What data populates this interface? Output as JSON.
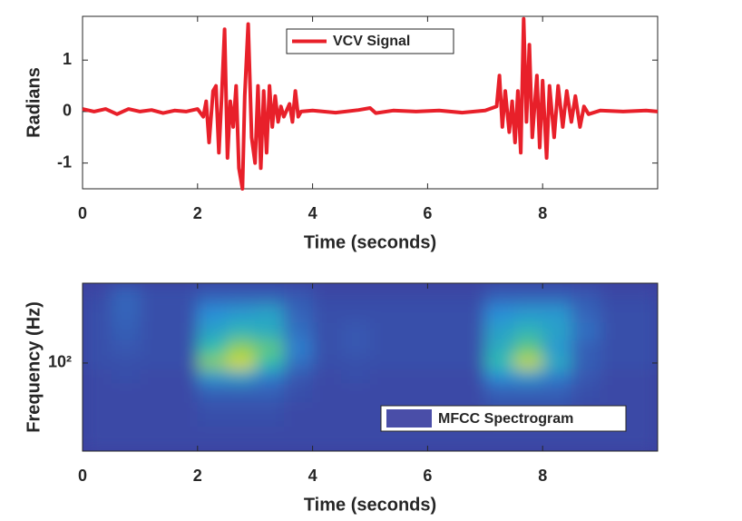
{
  "chart_data": [
    {
      "type": "line",
      "xlabel": "Time (seconds)",
      "ylabel": "Radians",
      "xlim": [
        0,
        10
      ],
      "ylim": [
        -1.5,
        1.85
      ],
      "xticks": [
        0,
        2,
        4,
        6,
        8
      ],
      "yticks": [
        -1,
        0,
        1
      ],
      "legend": "top-center",
      "series": [
        {
          "name": "VCV Signal",
          "color": "#e8202a",
          "x": [
            0,
            0.2,
            0.4,
            0.6,
            0.8,
            1.0,
            1.2,
            1.4,
            1.6,
            1.8,
            2.0,
            2.1,
            2.15,
            2.2,
            2.27,
            2.32,
            2.37,
            2.42,
            2.47,
            2.52,
            2.57,
            2.62,
            2.67,
            2.72,
            2.78,
            2.82,
            2.88,
            2.94,
            3.0,
            3.05,
            3.1,
            3.15,
            3.2,
            3.25,
            3.3,
            3.35,
            3.4,
            3.45,
            3.5,
            3.6,
            3.65,
            3.7,
            3.75,
            3.8,
            4.0,
            4.4,
            4.8,
            5.0,
            5.1,
            5.4,
            5.8,
            6.2,
            6.6,
            7.0,
            7.2,
            7.25,
            7.3,
            7.35,
            7.42,
            7.47,
            7.52,
            7.57,
            7.62,
            7.67,
            7.72,
            7.77,
            7.82,
            7.9,
            7.95,
            8.0,
            8.07,
            8.12,
            8.2,
            8.27,
            8.35,
            8.42,
            8.5,
            8.57,
            8.65,
            8.72,
            8.8,
            9.0,
            9.4,
            9.8,
            10
          ],
          "values": [
            0.05,
            0.0,
            0.05,
            -0.05,
            0.05,
            0.0,
            0.03,
            -0.03,
            0.02,
            0.0,
            0.05,
            -0.1,
            0.2,
            -0.6,
            0.4,
            0.5,
            -0.8,
            0.3,
            1.6,
            -0.9,
            0.2,
            -0.3,
            0.5,
            -1.1,
            -1.5,
            0.3,
            1.7,
            -0.5,
            -1.0,
            0.5,
            -1.1,
            0.4,
            -0.8,
            0.5,
            -0.3,
            0.3,
            -0.2,
            0.1,
            -0.1,
            0.15,
            -0.2,
            0.4,
            -0.1,
            0.0,
            0.02,
            -0.02,
            0.03,
            0.07,
            -0.03,
            0.02,
            0.0,
            0.02,
            -0.02,
            0.02,
            0.1,
            0.7,
            -0.3,
            0.4,
            -0.4,
            0.2,
            -0.6,
            0.4,
            -0.8,
            1.8,
            -0.2,
            1.3,
            -0.5,
            0.7,
            -0.7,
            0.6,
            -0.9,
            0.5,
            -0.5,
            0.5,
            -0.3,
            0.4,
            -0.2,
            0.3,
            -0.3,
            0.1,
            -0.05,
            0.02,
            0.0,
            0.02,
            0.0
          ]
        }
      ]
    },
    {
      "type": "heatmap",
      "xlabel": "Time (seconds)",
      "ylabel": "Frequency (Hz)",
      "xlim": [
        0,
        10
      ],
      "ylim": [
        20,
        430
      ],
      "log_y": true,
      "xticks": [
        0,
        2,
        4,
        6,
        8
      ],
      "yticks": [
        {
          "value": 100,
          "label": "10²"
        }
      ],
      "legend": "bottom-right",
      "legend_name": "MFCC Spectrogram",
      "legend_color": "#4a4ea8",
      "colormap": [
        "#3d3f9f",
        "#2a8fd8",
        "#2ebfae",
        "#a6d33c",
        "#f9e21e"
      ],
      "x": [
        0.25,
        0.75,
        1.25,
        1.75,
        2.25,
        2.75,
        3.25,
        3.75,
        4.25,
        4.75,
        5.25,
        5.75,
        6.25,
        6.75,
        7.25,
        7.75,
        8.25,
        8.75,
        9.25,
        9.75
      ],
      "y": [
        25,
        40,
        60,
        80,
        100,
        130,
        180,
        250,
        350
      ],
      "z": [
        [
          0.03,
          0.03,
          0.03,
          0.03,
          0.03,
          0.03,
          0.03,
          0.03,
          0.03,
          0.03,
          0.03,
          0.03,
          0.03,
          0.03,
          0.03,
          0.03,
          0.03,
          0.03,
          0.03,
          0.03
        ],
        [
          0.03,
          0.03,
          0.03,
          0.03,
          0.05,
          0.05,
          0.05,
          0.03,
          0.03,
          0.03,
          0.03,
          0.03,
          0.03,
          0.03,
          0.05,
          0.05,
          0.05,
          0.03,
          0.03,
          0.03
        ],
        [
          0.03,
          0.03,
          0.03,
          0.03,
          0.1,
          0.1,
          0.1,
          0.05,
          0.03,
          0.03,
          0.03,
          0.03,
          0.03,
          0.03,
          0.1,
          0.1,
          0.1,
          0.05,
          0.03,
          0.03
        ],
        [
          0.03,
          0.05,
          0.03,
          0.03,
          0.3,
          0.35,
          0.2,
          0.08,
          0.03,
          0.05,
          0.03,
          0.03,
          0.03,
          0.03,
          0.25,
          0.3,
          0.2,
          0.08,
          0.03,
          0.03
        ],
        [
          0.05,
          0.05,
          0.05,
          0.05,
          0.7,
          0.9,
          0.5,
          0.15,
          0.05,
          0.05,
          0.05,
          0.05,
          0.05,
          0.05,
          0.5,
          0.85,
          0.4,
          0.1,
          0.05,
          0.05
        ],
        [
          0.05,
          0.08,
          0.05,
          0.05,
          0.5,
          0.7,
          0.6,
          0.2,
          0.05,
          0.08,
          0.05,
          0.05,
          0.05,
          0.05,
          0.4,
          0.6,
          0.3,
          0.1,
          0.05,
          0.05
        ],
        [
          0.05,
          0.1,
          0.05,
          0.05,
          0.35,
          0.45,
          0.4,
          0.15,
          0.05,
          0.08,
          0.05,
          0.05,
          0.05,
          0.05,
          0.35,
          0.45,
          0.35,
          0.15,
          0.05,
          0.05
        ],
        [
          0.05,
          0.12,
          0.05,
          0.05,
          0.25,
          0.3,
          0.35,
          0.12,
          0.05,
          0.05,
          0.05,
          0.05,
          0.05,
          0.05,
          0.25,
          0.3,
          0.3,
          0.12,
          0.05,
          0.05
        ],
        [
          0.03,
          0.12,
          0.05,
          0.05,
          0.1,
          0.1,
          0.1,
          0.08,
          0.03,
          0.03,
          0.03,
          0.03,
          0.03,
          0.03,
          0.1,
          0.1,
          0.1,
          0.08,
          0.03,
          0.03
        ]
      ]
    }
  ]
}
